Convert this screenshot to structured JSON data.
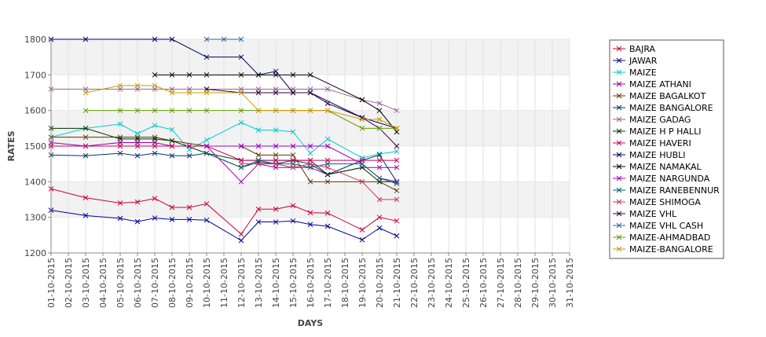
{
  "chart_data": {
    "type": "line",
    "xlabel": "DAYS",
    "ylabel": "RATES",
    "ylim": [
      1200,
      1800
    ],
    "yticks": [
      1200,
      1300,
      1400,
      1500,
      1600,
      1700,
      1800
    ],
    "grid": "horizontal alternating bands",
    "legend_position": "right",
    "categories": [
      "01-10-2015",
      "02-10-2015",
      "03-10-2015",
      "04-10-2015",
      "05-10-2015",
      "06-10-2015",
      "07-10-2015",
      "08-10-2015",
      "09-10-2015",
      "10-10-2015",
      "11-10-2015",
      "12-10-2015",
      "13-10-2015",
      "14-10-2015",
      "15-10-2015",
      "16-10-2015",
      "17-10-2015",
      "18-10-2015",
      "19-10-2015",
      "20-10-2015",
      "21-10-2015",
      "22-10-2015",
      "23-10-2015",
      "24-10-2015",
      "25-10-2015",
      "26-10-2015",
      "27-10-2015",
      "28-10-2015",
      "29-10-2015",
      "30-10-2015",
      "31-10-2015"
    ],
    "series": [
      {
        "name": "BAJRA",
        "color": "#cc0033",
        "points": [
          [
            "01-10-2015",
            1380
          ],
          [
            "03-10-2015",
            1355
          ],
          [
            "05-10-2015",
            1340
          ],
          [
            "06-10-2015",
            1343
          ],
          [
            "07-10-2015",
            1353
          ],
          [
            "08-10-2015",
            1328
          ],
          [
            "09-10-2015",
            1328
          ],
          [
            "10-10-2015",
            1338
          ],
          [
            "12-10-2015",
            1253
          ],
          [
            "13-10-2015",
            1323
          ],
          [
            "14-10-2015",
            1323
          ],
          [
            "15-10-2015",
            1333
          ],
          [
            "16-10-2015",
            1313
          ],
          [
            "17-10-2015",
            1312
          ],
          [
            "19-10-2015",
            1265
          ],
          [
            "20-10-2015",
            1300
          ],
          [
            "21-10-2015",
            1290
          ]
        ]
      },
      {
        "name": "JAWAR",
        "color": "#000099",
        "points": [
          [
            "01-10-2015",
            1320
          ],
          [
            "03-10-2015",
            1305
          ],
          [
            "05-10-2015",
            1297
          ],
          [
            "06-10-2015",
            1288
          ],
          [
            "07-10-2015",
            1298
          ],
          [
            "08-10-2015",
            1294
          ],
          [
            "09-10-2015",
            1294
          ],
          [
            "10-10-2015",
            1292
          ],
          [
            "12-10-2015",
            1235
          ],
          [
            "13-10-2015",
            1287
          ],
          [
            "14-10-2015",
            1287
          ],
          [
            "15-10-2015",
            1290
          ],
          [
            "16-10-2015",
            1280
          ],
          [
            "17-10-2015",
            1275
          ],
          [
            "19-10-2015",
            1237
          ],
          [
            "20-10-2015",
            1270
          ],
          [
            "21-10-2015",
            1248
          ]
        ]
      },
      {
        "name": "MAIZE",
        "color": "#00cccc",
        "points": [
          [
            "01-10-2015",
            1525
          ],
          [
            "03-10-2015",
            1550
          ],
          [
            "05-10-2015",
            1562
          ],
          [
            "06-10-2015",
            1535
          ],
          [
            "07-10-2015",
            1558
          ],
          [
            "08-10-2015",
            1546
          ],
          [
            "09-10-2015",
            1490
          ],
          [
            "10-10-2015",
            1517
          ],
          [
            "12-10-2015",
            1566
          ],
          [
            "13-10-2015",
            1545
          ],
          [
            "14-10-2015",
            1545
          ],
          [
            "15-10-2015",
            1540
          ],
          [
            "16-10-2015",
            1480
          ],
          [
            "17-10-2015",
            1520
          ],
          [
            "19-10-2015",
            1467
          ],
          [
            "20-10-2015",
            1478
          ],
          [
            "21-10-2015",
            1485
          ]
        ]
      },
      {
        "name": "MAIZE ATHANI",
        "color": "#990099",
        "points": [
          [
            "01-10-2015",
            1510
          ],
          [
            "03-10-2015",
            1500
          ],
          [
            "05-10-2015",
            1510
          ],
          [
            "06-10-2015",
            1510
          ],
          [
            "07-10-2015",
            1510
          ],
          [
            "08-10-2015",
            1500
          ],
          [
            "09-10-2015",
            1500
          ],
          [
            "10-10-2015",
            1500
          ],
          [
            "12-10-2015",
            1400
          ],
          [
            "13-10-2015",
            1450
          ],
          [
            "14-10-2015",
            1440
          ],
          [
            "15-10-2015",
            1440
          ],
          [
            "16-10-2015",
            1440
          ],
          [
            "17-10-2015",
            1420
          ],
          [
            "19-10-2015",
            1440
          ],
          [
            "20-10-2015",
            1440
          ],
          [
            "21-10-2015",
            1440
          ]
        ]
      },
      {
        "name": "MAIZE BAGALKOT",
        "color": "#663300",
        "points": [
          [
            "01-10-2015",
            1525
          ],
          [
            "03-10-2015",
            1525
          ],
          [
            "05-10-2015",
            1525
          ],
          [
            "06-10-2015",
            1525
          ],
          [
            "07-10-2015",
            1525
          ],
          [
            "08-10-2015",
            1515
          ],
          [
            "10-10-2015",
            1500
          ],
          [
            "12-10-2015",
            1500
          ],
          [
            "13-10-2015",
            1475
          ],
          [
            "14-10-2015",
            1475
          ],
          [
            "15-10-2015",
            1475
          ],
          [
            "16-10-2015",
            1400
          ],
          [
            "17-10-2015",
            1400
          ],
          [
            "19-10-2015",
            1400
          ],
          [
            "20-10-2015",
            1400
          ],
          [
            "21-10-2015",
            1375
          ]
        ]
      },
      {
        "name": "MAIZE BANGALORE",
        "color": "#003366",
        "points": [
          [
            "01-10-2015",
            1475
          ],
          [
            "03-10-2015",
            1473
          ],
          [
            "05-10-2015",
            1480
          ],
          [
            "06-10-2015",
            1473
          ],
          [
            "07-10-2015",
            1480
          ],
          [
            "08-10-2015",
            1473
          ],
          [
            "09-10-2015",
            1473
          ],
          [
            "10-10-2015",
            1480
          ],
          [
            "12-10-2015",
            1440
          ],
          [
            "13-10-2015",
            1455
          ],
          [
            "14-10-2015",
            1450
          ],
          [
            "15-10-2015",
            1460
          ],
          [
            "16-10-2015",
            1460
          ],
          [
            "17-10-2015",
            1420
          ],
          [
            "19-10-2015",
            1460
          ],
          [
            "20-10-2015",
            1475
          ],
          [
            "21-10-2015",
            1400
          ]
        ]
      },
      {
        "name": "MAIZE GADAG",
        "color": "#996699",
        "points": [
          [
            "01-10-2015",
            1660
          ],
          [
            "03-10-2015",
            1660
          ],
          [
            "05-10-2015",
            1660
          ],
          [
            "06-10-2015",
            1660
          ],
          [
            "07-10-2015",
            1660
          ],
          [
            "08-10-2015",
            1660
          ],
          [
            "09-10-2015",
            1660
          ],
          [
            "10-10-2015",
            1660
          ],
          [
            "12-10-2015",
            1660
          ],
          [
            "13-10-2015",
            1660
          ],
          [
            "14-10-2015",
            1660
          ],
          [
            "15-10-2015",
            1660
          ],
          [
            "16-10-2015",
            1660
          ],
          [
            "17-10-2015",
            1660
          ],
          [
            "19-10-2015",
            1630
          ],
          [
            "20-10-2015",
            1620
          ],
          [
            "21-10-2015",
            1600
          ]
        ]
      },
      {
        "name": "MAIZE H P HALLI",
        "color": "#003300",
        "points": [
          [
            "01-10-2015",
            1550
          ],
          [
            "03-10-2015",
            1550
          ],
          [
            "05-10-2015",
            1520
          ],
          [
            "06-10-2015",
            1520
          ],
          [
            "07-10-2015",
            1520
          ],
          [
            "08-10-2015",
            1515
          ],
          [
            "10-10-2015",
            1480
          ],
          [
            "12-10-2015",
            1460
          ],
          [
            "13-10-2015",
            1460
          ],
          [
            "14-10-2015",
            1460
          ],
          [
            "15-10-2015",
            1460
          ],
          [
            "16-10-2015",
            1450
          ],
          [
            "17-10-2015",
            1420
          ],
          [
            "19-10-2015",
            1440
          ],
          [
            "20-10-2015",
            1400
          ],
          [
            "21-10-2015",
            1400
          ]
        ]
      },
      {
        "name": "MAIZE HAVERI",
        "color": "#cc0066",
        "points": [
          [
            "01-10-2015",
            1500
          ],
          [
            "03-10-2015",
            1500
          ],
          [
            "05-10-2015",
            1500
          ],
          [
            "06-10-2015",
            1500
          ],
          [
            "07-10-2015",
            1500
          ],
          [
            "08-10-2015",
            1500
          ],
          [
            "09-10-2015",
            1500
          ],
          [
            "10-10-2015",
            1500
          ],
          [
            "12-10-2015",
            1460
          ],
          [
            "13-10-2015",
            1460
          ],
          [
            "14-10-2015",
            1460
          ],
          [
            "15-10-2015",
            1460
          ],
          [
            "16-10-2015",
            1460
          ],
          [
            "17-10-2015",
            1460
          ],
          [
            "19-10-2015",
            1460
          ],
          [
            "20-10-2015",
            1460
          ],
          [
            "21-10-2015",
            1460
          ]
        ]
      },
      {
        "name": "MAIZE HUBLI",
        "color": "#000066",
        "points": [
          [
            "01-10-2015",
            1800
          ],
          [
            "03-10-2015",
            1800
          ],
          [
            "07-10-2015",
            1800
          ],
          [
            "08-10-2015",
            1800
          ],
          [
            "10-10-2015",
            1750
          ],
          [
            "12-10-2015",
            1750
          ],
          [
            "13-10-2015",
            1700
          ],
          [
            "14-10-2015",
            1710
          ],
          [
            "15-10-2015",
            1650
          ],
          [
            "16-10-2015",
            1650
          ],
          [
            "19-10-2015",
            1580
          ],
          [
            "21-10-2015",
            1550
          ]
        ]
      },
      {
        "name": "MAIZE NAMAKAL",
        "color": "#000000",
        "points": [
          [
            "07-10-2015",
            1700
          ],
          [
            "08-10-2015",
            1700
          ],
          [
            "09-10-2015",
            1700
          ],
          [
            "10-10-2015",
            1700
          ],
          [
            "12-10-2015",
            1700
          ],
          [
            "13-10-2015",
            1700
          ],
          [
            "14-10-2015",
            1700
          ],
          [
            "15-10-2015",
            1700
          ],
          [
            "16-10-2015",
            1700
          ],
          [
            "19-10-2015",
            1630
          ],
          [
            "20-10-2015",
            1600
          ],
          [
            "21-10-2015",
            1540
          ]
        ]
      },
      {
        "name": "MAIZE NARGUNDA",
        "color": "#9900cc",
        "points": [
          [
            "10-10-2015",
            1500
          ],
          [
            "12-10-2015",
            1500
          ],
          [
            "13-10-2015",
            1500
          ],
          [
            "14-10-2015",
            1500
          ],
          [
            "15-10-2015",
            1500
          ],
          [
            "16-10-2015",
            1500
          ],
          [
            "17-10-2015",
            1500
          ],
          [
            "19-10-2015",
            1450
          ],
          [
            "20-10-2015",
            1410
          ],
          [
            "21-10-2015",
            1400
          ]
        ]
      },
      {
        "name": "MAIZE RANEBENNUR",
        "color": "#006666",
        "points": [
          [
            "10-10-2015",
            1480
          ],
          [
            "12-10-2015",
            1440
          ],
          [
            "13-10-2015",
            1460
          ],
          [
            "14-10-2015",
            1450
          ],
          [
            "15-10-2015",
            1450
          ],
          [
            "16-10-2015",
            1440
          ],
          [
            "17-10-2015",
            1450
          ],
          [
            "19-10-2015",
            1450
          ],
          [
            "20-10-2015",
            1410
          ],
          [
            "21-10-2015",
            1395
          ]
        ]
      },
      {
        "name": "MAIZE SHIMOGA",
        "color": "#cc3366",
        "points": [
          [
            "12-10-2015",
            1450
          ],
          [
            "13-10-2015",
            1450
          ],
          [
            "14-10-2015",
            1450
          ],
          [
            "15-10-2015",
            1440
          ],
          [
            "16-10-2015",
            1450
          ],
          [
            "17-10-2015",
            1440
          ],
          [
            "19-10-2015",
            1400
          ],
          [
            "20-10-2015",
            1350
          ],
          [
            "21-10-2015",
            1350
          ]
        ]
      },
      {
        "name": "MAIZE VHL",
        "color": "#330033",
        "points": [
          [
            "10-10-2015",
            1660
          ],
          [
            "12-10-2015",
            1650
          ],
          [
            "13-10-2015",
            1650
          ],
          [
            "14-10-2015",
            1650
          ],
          [
            "15-10-2015",
            1650
          ],
          [
            "16-10-2015",
            1650
          ],
          [
            "17-10-2015",
            1620
          ],
          [
            "19-10-2015",
            1580
          ],
          [
            "20-10-2015",
            1550
          ],
          [
            "21-10-2015",
            1500
          ]
        ]
      },
      {
        "name": "MAIZE VHL CASH",
        "color": "#336699",
        "points": [
          [
            "10-10-2015",
            1800
          ],
          [
            "11-10-2015",
            1800
          ],
          [
            "12-10-2015",
            1800
          ]
        ]
      },
      {
        "name": "MAIZE-AHMADBAD",
        "color": "#669900",
        "points": [
          [
            "03-10-2015",
            1600
          ],
          [
            "05-10-2015",
            1600
          ],
          [
            "06-10-2015",
            1600
          ],
          [
            "07-10-2015",
            1600
          ],
          [
            "08-10-2015",
            1600
          ],
          [
            "09-10-2015",
            1600
          ],
          [
            "10-10-2015",
            1600
          ],
          [
            "12-10-2015",
            1600
          ],
          [
            "13-10-2015",
            1600
          ],
          [
            "14-10-2015",
            1600
          ],
          [
            "15-10-2015",
            1600
          ],
          [
            "16-10-2015",
            1600
          ],
          [
            "17-10-2015",
            1600
          ],
          [
            "19-10-2015",
            1550
          ],
          [
            "20-10-2015",
            1550
          ],
          [
            "21-10-2015",
            1550
          ]
        ]
      },
      {
        "name": "MAIZE-BANGALORE",
        "color": "#cc9900",
        "points": [
          [
            "03-10-2015",
            1650
          ],
          [
            "05-10-2015",
            1670
          ],
          [
            "06-10-2015",
            1670
          ],
          [
            "07-10-2015",
            1670
          ],
          [
            "08-10-2015",
            1650
          ],
          [
            "09-10-2015",
            1650
          ],
          [
            "10-10-2015",
            1650
          ],
          [
            "12-10-2015",
            1650
          ],
          [
            "13-10-2015",
            1600
          ],
          [
            "14-10-2015",
            1600
          ],
          [
            "15-10-2015",
            1600
          ],
          [
            "16-10-2015",
            1600
          ],
          [
            "17-10-2015",
            1600
          ],
          [
            "19-10-2015",
            1575
          ],
          [
            "20-10-2015",
            1575
          ],
          [
            "21-10-2015",
            1550
          ]
        ]
      }
    ]
  }
}
